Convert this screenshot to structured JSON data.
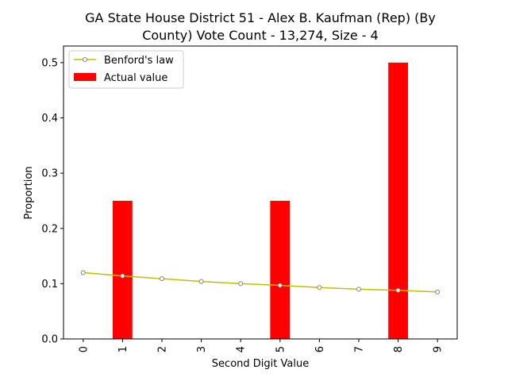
{
  "chart_data": {
    "type": "bar",
    "title_lines": [
      "GA State House District 51 - Alex B. Kaufman (Rep) (By",
      "County) Vote Count - 13,274, Size - 4"
    ],
    "xlabel": "Second Digit Value",
    "ylabel": "Proportion",
    "categories": [
      "0",
      "1",
      "2",
      "3",
      "4",
      "5",
      "6",
      "7",
      "8",
      "9"
    ],
    "x": [
      0,
      1,
      2,
      3,
      4,
      5,
      6,
      7,
      8,
      9
    ],
    "ylim": [
      0,
      0.53
    ],
    "yticks": [
      0.0,
      0.1,
      0.2,
      0.3,
      0.4,
      0.5
    ],
    "ytick_labels": [
      "0.0",
      "0.1",
      "0.2",
      "0.3",
      "0.4",
      "0.5"
    ],
    "legend_position": "upper-left",
    "grid": false,
    "series": [
      {
        "name": "Benford's law",
        "type": "line",
        "color": "#bfbf00",
        "marker": "circle",
        "values": [
          0.12,
          0.114,
          0.109,
          0.104,
          0.1,
          0.097,
          0.093,
          0.09,
          0.088,
          0.085
        ]
      },
      {
        "name": "Actual value",
        "type": "bar",
        "color": "#ff0000",
        "values": [
          0.0,
          0.25,
          0.0,
          0.0,
          0.0,
          0.25,
          0.0,
          0.0,
          0.5,
          0.0
        ]
      }
    ]
  }
}
